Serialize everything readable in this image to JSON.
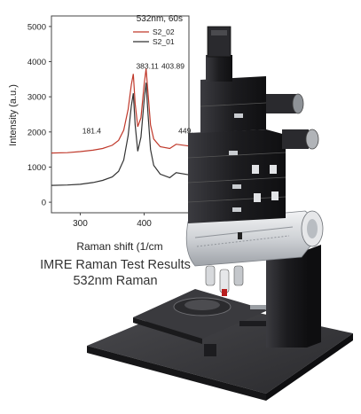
{
  "top_strip_text": "",
  "caption": {
    "line1": "IMRE Raman Test Results",
    "line2": "532nm Raman"
  },
  "chart_data": {
    "type": "line",
    "title": "532nm, 60s",
    "xlabel": "Raman shift (1/cm",
    "ylabel": "Intensity (a.u.)",
    "xlim": [
      255,
      470
    ],
    "ylim": [
      -300,
      5300
    ],
    "xticks": [
      300,
      400
    ],
    "yticks": [
      0,
      1000,
      2000,
      3000,
      4000,
      5000
    ],
    "grid": false,
    "legend_position": "top-right",
    "series": [
      {
        "name": "S2_02",
        "color": "#c0392b",
        "x": [
          255,
          280,
          300,
          320,
          335,
          350,
          360,
          368,
          375,
          380,
          383,
          386,
          390,
          395,
          400,
          403,
          406,
          410,
          415,
          425,
          440,
          450,
          470
        ],
        "y": [
          1400,
          1410,
          1440,
          1480,
          1530,
          1620,
          1760,
          2050,
          2650,
          3350,
          3650,
          2800,
          2150,
          2400,
          3350,
          3800,
          3100,
          2200,
          1800,
          1580,
          1530,
          1650,
          1600
        ]
      },
      {
        "name": "S2_01",
        "color": "#333333",
        "x": [
          255,
          280,
          300,
          320,
          335,
          350,
          360,
          368,
          375,
          380,
          383,
          386,
          390,
          395,
          400,
          403,
          406,
          410,
          415,
          425,
          440,
          450,
          470
        ],
        "y": [
          480,
          490,
          510,
          560,
          620,
          720,
          880,
          1200,
          1900,
          2750,
          3100,
          2200,
          1450,
          1850,
          2900,
          3400,
          2500,
          1500,
          1050,
          800,
          700,
          840,
          780
        ]
      }
    ],
    "annotations": [
      {
        "text": "181.4",
        "x": 318,
        "y": 1960
      },
      {
        "text": "383.11",
        "x": 405,
        "y": 3800
      },
      {
        "text": "403.89",
        "x": 445,
        "y": 3800
      },
      {
        "text": "449.",
        "x": 465,
        "y": 1960
      }
    ]
  },
  "illustration": {
    "name": "raman-microscope-illustration",
    "body_color": "#1f1f22",
    "silver_color": "#d9dbde",
    "base_color": "#2a2a2d"
  }
}
